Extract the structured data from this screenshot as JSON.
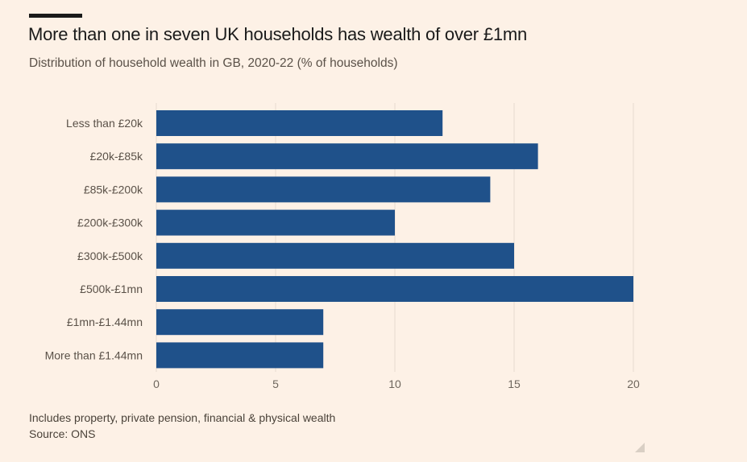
{
  "title": "More than one in seven UK households has wealth of over £1mn",
  "subtitle": "Distribution of household wealth in GB, 2020-22 (% of households)",
  "footer": {
    "note": "Includes property, private pension, financial & physical wealth",
    "source": "Source: ONS"
  },
  "colors": {
    "bar": "#1f518a",
    "background": "#fdf1e6",
    "grid": "#e8dcd0"
  },
  "chart_data": {
    "type": "bar",
    "orientation": "horizontal",
    "categories": [
      "Less than £20k",
      "£20k-£85k",
      "£85k-£200k",
      "£200k-£300k",
      "£300k-£500k",
      "£500k-£1mn",
      "£1mn-£1.44mn",
      "More than £1.44mn"
    ],
    "values": [
      12,
      16,
      14,
      10,
      15,
      20,
      7,
      7
    ],
    "title": "More than one in seven UK households has wealth of over £1mn",
    "subtitle": "Distribution of household wealth in GB, 2020-22 (% of households)",
    "xlabel": "",
    "ylabel": "",
    "xlim": [
      0,
      20
    ],
    "xticks": [
      0,
      5,
      10,
      15,
      20
    ],
    "grid": true,
    "legend": "none"
  }
}
